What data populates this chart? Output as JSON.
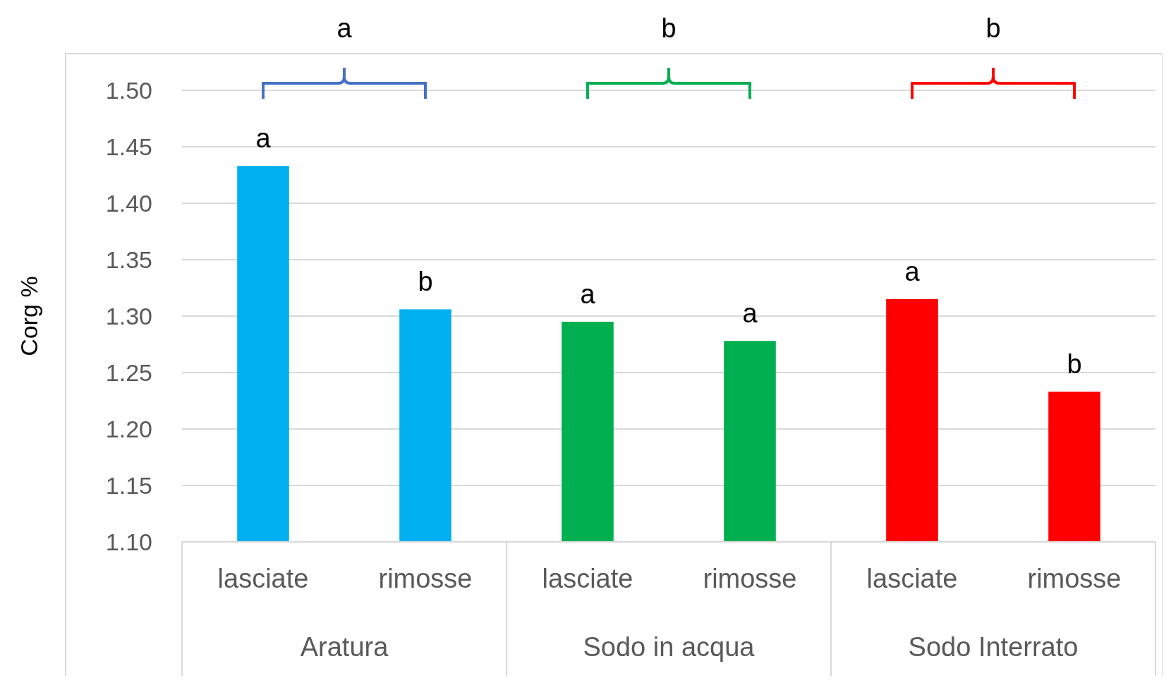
{
  "chart_data": {
    "type": "bar",
    "ylabel": "Corg %",
    "categories": [
      "Aratura",
      "Sodo in acqua",
      "Sodo Interrato"
    ],
    "series": [
      {
        "name": "lasciate",
        "colors": [
          "#00b0f0",
          "#00b050",
          "#ff0000"
        ],
        "values": [
          1.433,
          1.295,
          1.315
        ]
      },
      {
        "name": "rimosse",
        "colors": [
          "#00b0f0",
          "#00b050",
          "#ff0000"
        ],
        "values": [
          1.306,
          1.278,
          1.233
        ]
      }
    ],
    "ylim": [
      1.1,
      1.5
    ],
    "yticks": [
      {
        "value": 1.1,
        "label": "1.10"
      },
      {
        "value": 1.15,
        "label": "1.15"
      },
      {
        "value": 1.2,
        "label": "1.20"
      },
      {
        "value": 1.25,
        "label": "1.25"
      },
      {
        "value": 1.3,
        "label": "1.30"
      },
      {
        "value": 1.35,
        "label": "1.35"
      },
      {
        "value": 1.4,
        "label": "1.40"
      },
      {
        "value": 1.45,
        "label": "1.45"
      },
      {
        "value": 1.5,
        "label": "1.50"
      }
    ],
    "grid": "y",
    "annotations": [
      "a",
      "b",
      "a",
      "a",
      "a",
      "b",
      "a",
      "b",
      "b"
    ]
  }
}
